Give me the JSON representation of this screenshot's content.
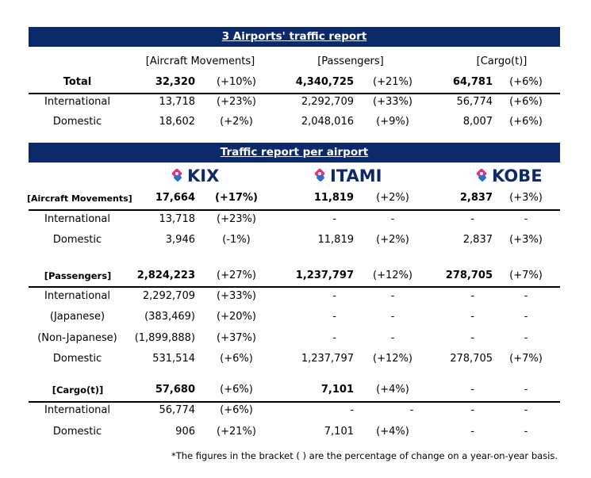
{
  "overview": {
    "title": "3 Airports' traffic report",
    "headers": {
      "aircraft": "[Aircraft Movements]",
      "passengers": "[Passengers]",
      "cargo": "[Cargo(t)]"
    },
    "rows": [
      {
        "label": "Total",
        "air_v": "32,320",
        "air_p": "(+10%)",
        "pax_v": "4,340,725",
        "pax_p": "(+21%)",
        "cargo_v": "64,781",
        "cargo_p": "(+6%)"
      },
      {
        "label": "International",
        "air_v": "13,718",
        "air_p": "(+23%)",
        "pax_v": "2,292,709",
        "pax_p": "(+33%)",
        "cargo_v": "56,774",
        "cargo_p": "(+6%)"
      },
      {
        "label": "Domestic",
        "air_v": "18,602",
        "air_p": "(+2%)",
        "pax_v": "2,048,016",
        "pax_p": "(+9%)",
        "cargo_v": "8,007",
        "cargo_p": "(+6%)"
      }
    ]
  },
  "per_airport": {
    "title": "Traffic report per airport",
    "logos": {
      "kix": "KIX",
      "itami": "ITAMI",
      "kobe": "KOBE"
    },
    "sections": [
      {
        "header": "[Aircraft Movements]",
        "total": {
          "kix_v": "17,664",
          "kix_p": "(+17%)",
          "itm_v": "11,819",
          "itm_p": "(+2%)",
          "kobe_v": "2,837",
          "kobe_p": "(+3%)"
        },
        "rows": [
          {
            "label": "International",
            "kix_v": "13,718",
            "kix_p": "(+23%)",
            "itm_v": "-",
            "itm_p": "-",
            "kobe_v": "-",
            "kobe_p": "-"
          },
          {
            "label": "Domestic",
            "kix_v": "3,946",
            "kix_p": "(-1%)",
            "itm_v": "11,819",
            "itm_p": "(+2%)",
            "kobe_v": "2,837",
            "kobe_p": "(+3%)"
          }
        ]
      },
      {
        "header": "[Passengers]",
        "total": {
          "kix_v": "2,824,223",
          "kix_p": "(+27%)",
          "itm_v": "1,237,797",
          "itm_p": "(+12%)",
          "kobe_v": "278,705",
          "kobe_p": "(+7%)"
        },
        "rows": [
          {
            "label": "International",
            "kix_v": "2,292,709",
            "kix_p": "(+33%)",
            "itm_v": "-",
            "itm_p": "-",
            "kobe_v": "-",
            "kobe_p": "-"
          },
          {
            "label": "(Japanese)",
            "kix_v": "(383,469)",
            "kix_p": "(+20%)",
            "itm_v": "-",
            "itm_p": "-",
            "kobe_v": "-",
            "kobe_p": "-"
          },
          {
            "label": "(Non-Japanese)",
            "kix_v": "(1,899,888)",
            "kix_p": "(+37%)",
            "itm_v": "-",
            "itm_p": "-",
            "kobe_v": "-",
            "kobe_p": "-"
          },
          {
            "label": "Domestic",
            "kix_v": "531,514",
            "kix_p": "(+6%)",
            "itm_v": "1,237,797",
            "itm_p": "(+12%)",
            "kobe_v": "278,705",
            "kobe_p": "(+7%)"
          }
        ]
      },
      {
        "header": "[Cargo(t)]",
        "total": {
          "kix_v": "57,680",
          "kix_p": "(+6%)",
          "itm_v": "7,101",
          "itm_p": "(+4%)",
          "kobe_v": "-",
          "kobe_p": "-"
        },
        "rows": [
          {
            "label": "International",
            "kix_v": "56,774",
            "kix_p": "(+6%)",
            "itm_v": "-",
            "itm_p": "-",
            "kobe_v": "-",
            "kobe_p": "-"
          },
          {
            "label": "Domestic",
            "kix_v": "906",
            "kix_p": "(+21%)",
            "itm_v": "7,101",
            "itm_p": "(+4%)",
            "kobe_v": "-",
            "kobe_p": "-"
          }
        ]
      }
    ]
  },
  "footnote": "*The figures in the bracket (    ) are the percentage of change on a year-on-year basis.",
  "colors": {
    "banner": "#0c2a6a",
    "logo_text": "#0c2a6a",
    "logo_pink": "#e8317b",
    "logo_blue": "#2a6fd1"
  }
}
